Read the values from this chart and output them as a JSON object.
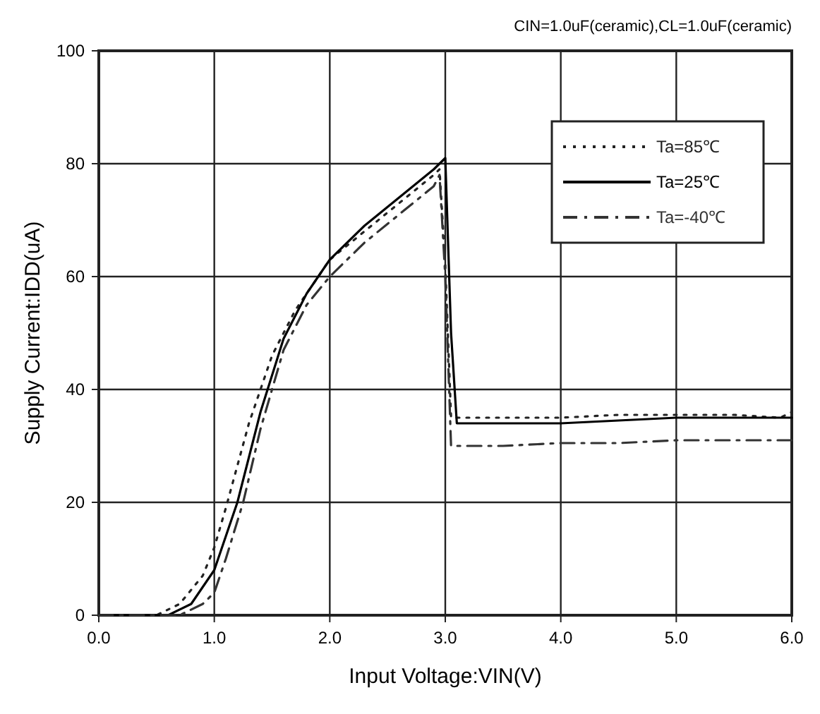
{
  "chart_data": {
    "type": "line",
    "title": "CIN=1.0uF(ceramic),CL=1.0uF(ceramic)",
    "xlabel": "Input Voltage:VIN(V)",
    "ylabel": "Supply Current:IDD(uA)",
    "xlim": [
      0,
      6
    ],
    "ylim": [
      0,
      100
    ],
    "xticks": [
      {
        "value": 0,
        "label": "0.0"
      },
      {
        "value": 1,
        "label": "1.0"
      },
      {
        "value": 2,
        "label": "2.0"
      },
      {
        "value": 3,
        "label": "3.0"
      },
      {
        "value": 4,
        "label": "4.0"
      },
      {
        "value": 5,
        "label": "5.0"
      },
      {
        "value": 6,
        "label": "6.0"
      }
    ],
    "yticks": [
      0,
      20,
      40,
      60,
      80,
      100
    ],
    "grid": true,
    "legend": "top right",
    "series": [
      {
        "name": "Ta=85℃",
        "color": "#222222",
        "line_style": "dotted",
        "x": [
          0,
          0.5,
          0.7,
          0.9,
          1.0,
          1.1,
          1.3,
          1.5,
          1.7,
          2.0,
          2.3,
          2.6,
          2.9,
          2.95,
          3.0,
          3.05,
          3.5,
          4.0,
          4.5,
          5.0,
          5.5,
          5.9,
          6.0
        ],
        "values": [
          0,
          0,
          2,
          7,
          12,
          19,
          34,
          46,
          54,
          63,
          68,
          73,
          78,
          79,
          62,
          35,
          35,
          35,
          35.5,
          35.5,
          35.5,
          35,
          36
        ]
      },
      {
        "name": "Ta=25℃",
        "color": "#000000",
        "line_style": "solid",
        "x": [
          0,
          0.6,
          0.8,
          1.0,
          1.1,
          1.2,
          1.4,
          1.6,
          1.8,
          2.0,
          2.3,
          2.6,
          2.9,
          3.0,
          3.05,
          3.1,
          3.5,
          4.0,
          4.5,
          5.0,
          5.5,
          6.0
        ],
        "values": [
          0,
          0,
          2,
          8,
          14,
          20,
          36,
          49,
          57,
          63,
          69,
          74,
          79,
          81,
          50,
          34,
          34,
          34,
          34.5,
          35,
          35,
          35
        ]
      },
      {
        "name": "Ta=-40℃",
        "color": "#333333",
        "line_style": "dashdot",
        "x": [
          0,
          0.7,
          0.9,
          1.0,
          1.1,
          1.25,
          1.4,
          1.6,
          1.8,
          2.0,
          2.3,
          2.6,
          2.9,
          2.95,
          3.0,
          3.05,
          3.5,
          4.0,
          4.5,
          5.0,
          5.5,
          6.0
        ],
        "values": [
          0,
          0,
          2,
          4,
          10,
          20,
          33,
          47,
          55,
          60,
          66,
          71,
          76,
          78,
          60,
          30,
          30,
          30.5,
          30.5,
          31,
          31,
          31
        ]
      }
    ]
  }
}
